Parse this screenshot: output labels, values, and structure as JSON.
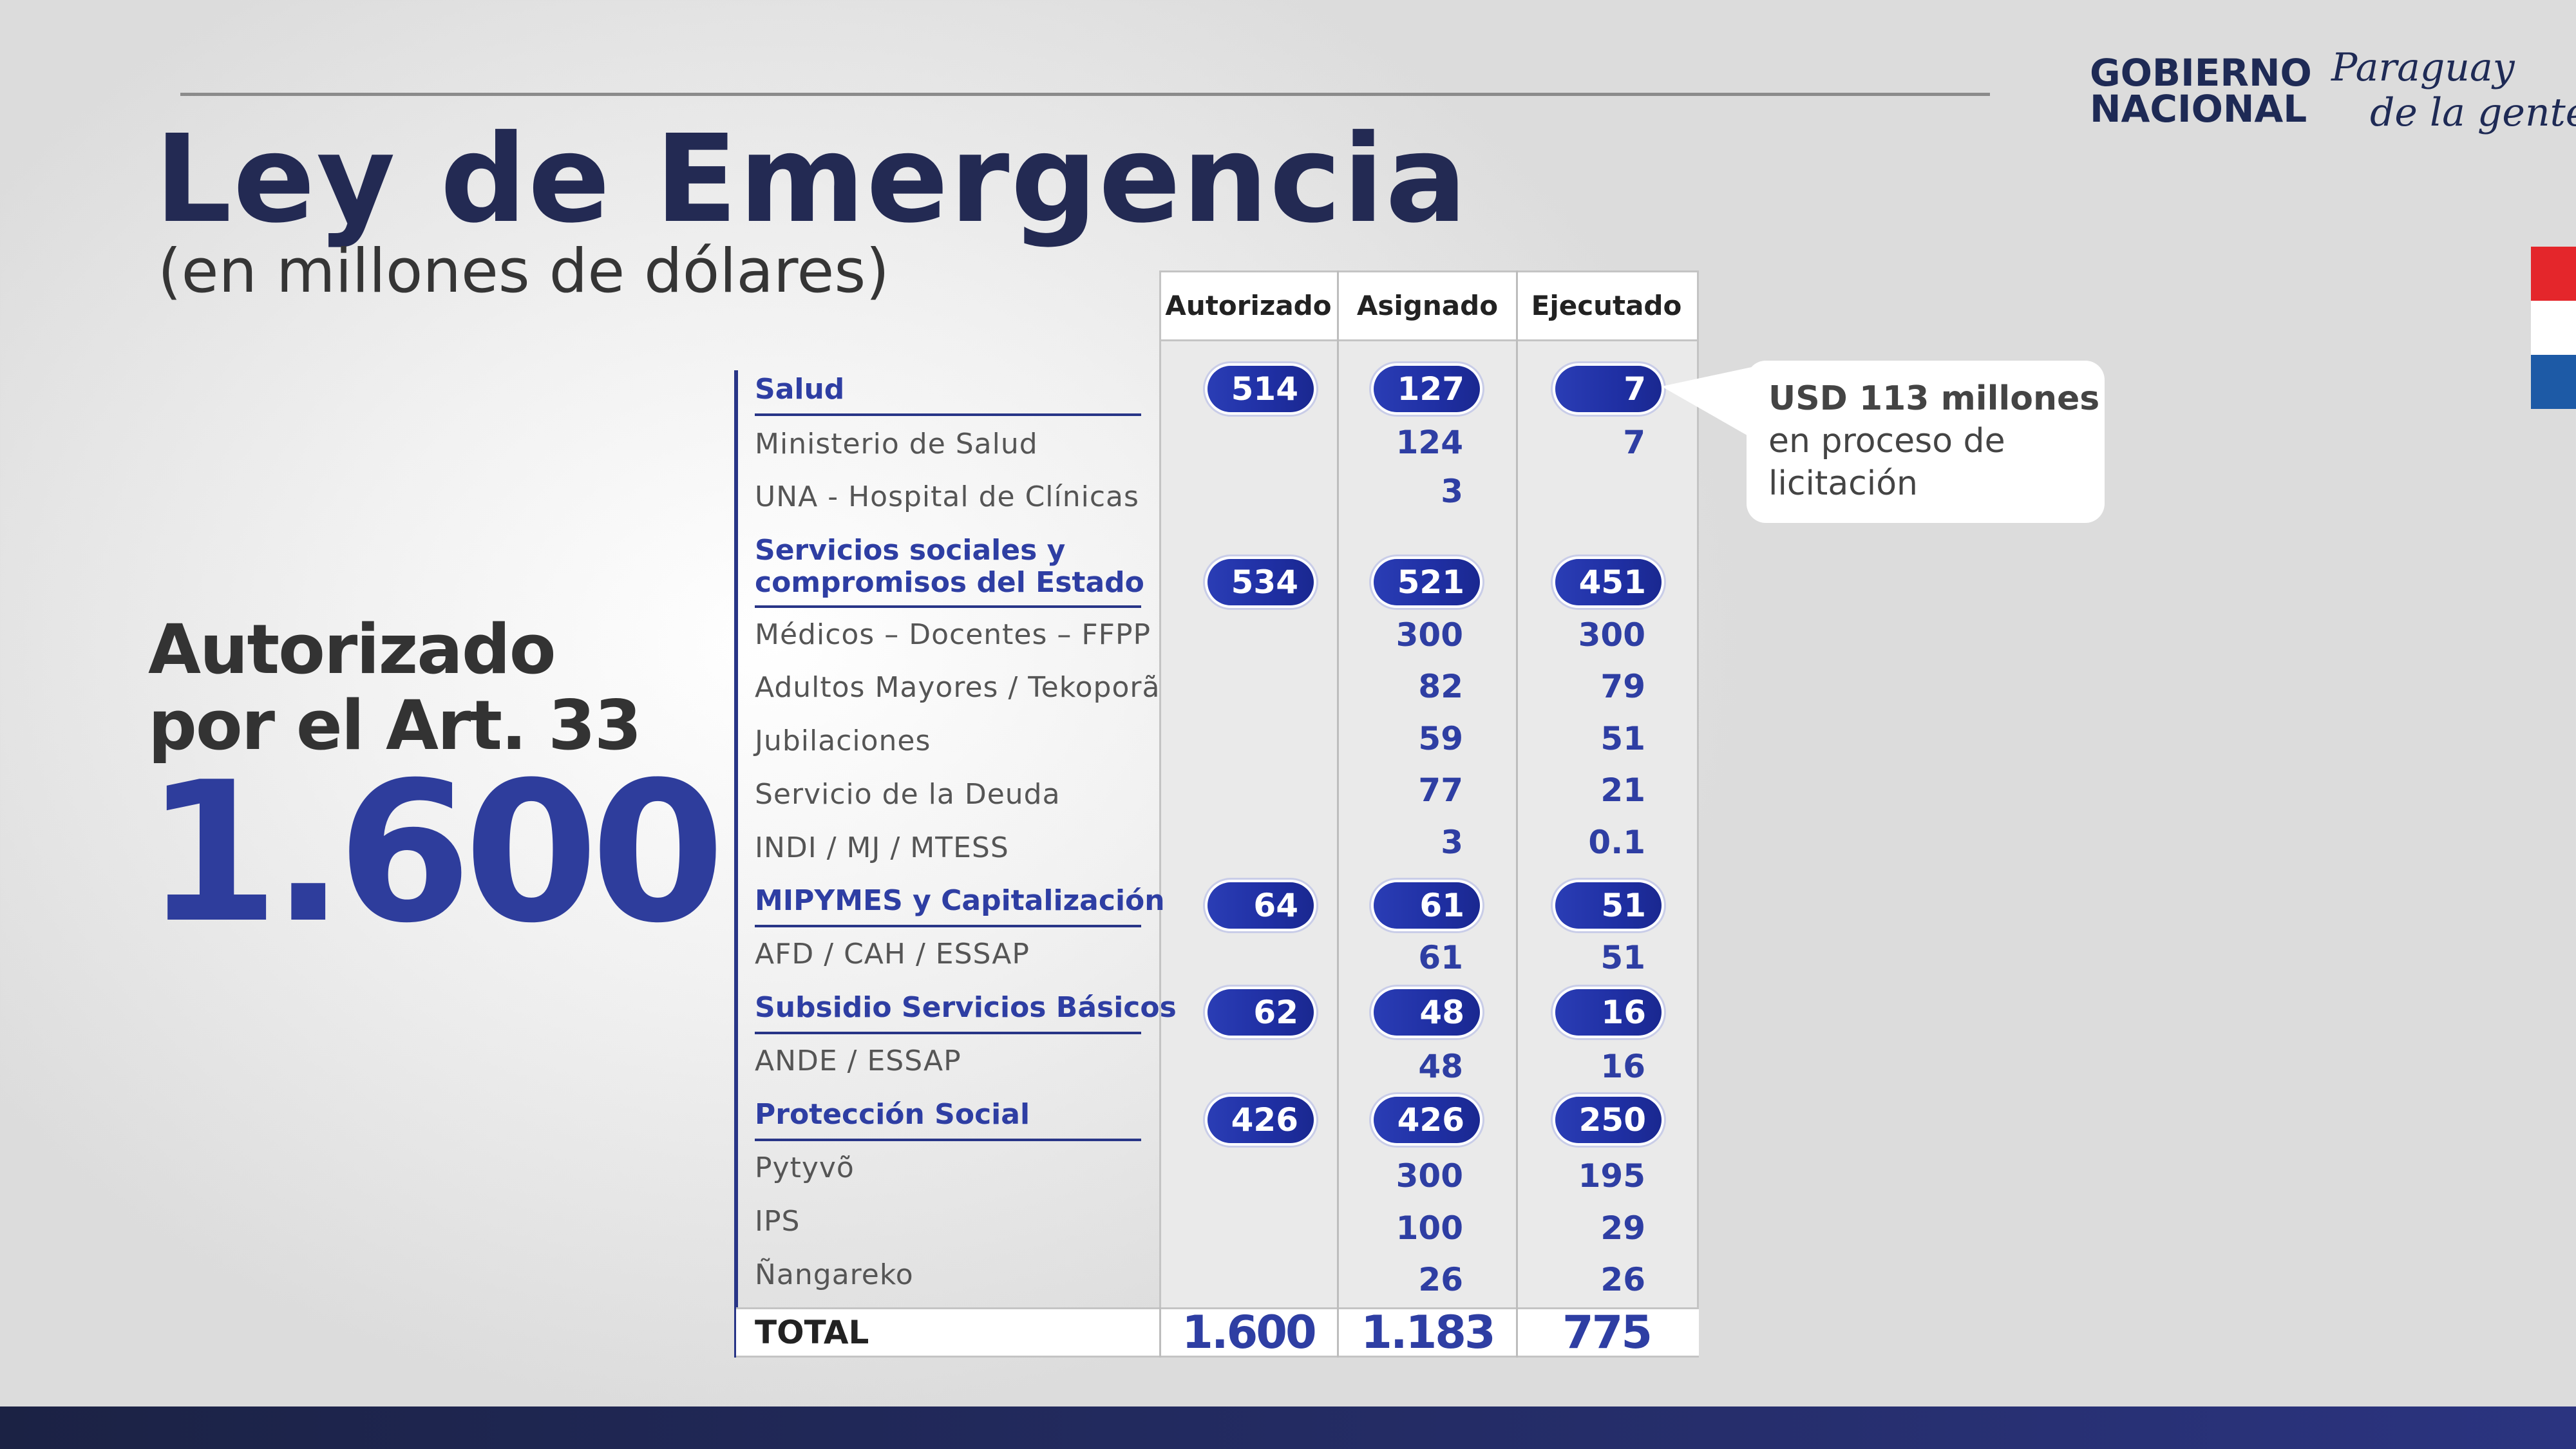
{
  "title": "Ley de Emergencia",
  "subtitle": "(en millones de dólares)",
  "logo": {
    "line1": "GOBIERNO",
    "line2": "NACIONAL",
    "slogan_line1": "Paraguay",
    "slogan_line2": "de la gente"
  },
  "left": {
    "line1": "Autorizado",
    "line2": "por el Art. 33",
    "big_number": "1.600"
  },
  "table": {
    "headers": [
      "Autorizado",
      "Asignado",
      "Ejecutado"
    ],
    "rows": [
      {
        "label": "Salud",
        "autorizado": "514",
        "asignado": "127",
        "ejecutado": "7"
      },
      {
        "label": "Ministerio de Salud",
        "asignado": "124",
        "ejecutado": "7"
      },
      {
        "label": "UNA - Hospital de Clínicas",
        "asignado": "3"
      },
      {
        "label": "Servicios sociales y",
        "label2": "compromisos del Estado",
        "autorizado": "534",
        "asignado": "521",
        "ejecutado": "451"
      },
      {
        "label": "Médicos – Docentes – FFPP",
        "asignado": "300",
        "ejecutado": "300"
      },
      {
        "label": "Adultos Mayores / Tekoporã",
        "asignado": "82",
        "ejecutado": "79"
      },
      {
        "label": "Jubilaciones",
        "asignado": "59",
        "ejecutado": "51"
      },
      {
        "label": "Servicio de la Deuda",
        "asignado": "77",
        "ejecutado": "21"
      },
      {
        "label": "INDI / MJ / MTESS",
        "asignado": "3",
        "ejecutado": "0.1"
      },
      {
        "label": "MIPYMES y Capitalización",
        "autorizado": "64",
        "asignado": "61",
        "ejecutado": "51"
      },
      {
        "label": "AFD / CAH / ESSAP",
        "asignado": "61",
        "ejecutado": "51"
      },
      {
        "label": "Subsidio Servicios Básicos",
        "autorizado": "62",
        "asignado": "48",
        "ejecutado": "16"
      },
      {
        "label": "ANDE / ESSAP",
        "asignado": "48",
        "ejecutado": "16"
      },
      {
        "label": "Protección Social",
        "autorizado": "426",
        "asignado": "426",
        "ejecutado": "250"
      },
      {
        "label": "Pytyvõ",
        "asignado": "300",
        "ejecutado": "195"
      },
      {
        "label": "IPS",
        "asignado": "100",
        "ejecutado": "29"
      },
      {
        "label": "Ñangareko",
        "asignado": "26",
        "ejecutado": "26"
      }
    ],
    "total": {
      "label": "TOTAL",
      "autorizado": "1.600",
      "asignado": "1.183",
      "ejecutado": "775"
    }
  },
  "callout": {
    "bold": "USD 113 millones",
    "line2": "en proceso de",
    "line3": "licitación"
  },
  "colors": {
    "accent": "#2e3ea3",
    "title": "#232a53",
    "flag_red": "#e4262b",
    "flag_white": "#ffffff",
    "flag_blue": "#1d5aa6"
  }
}
